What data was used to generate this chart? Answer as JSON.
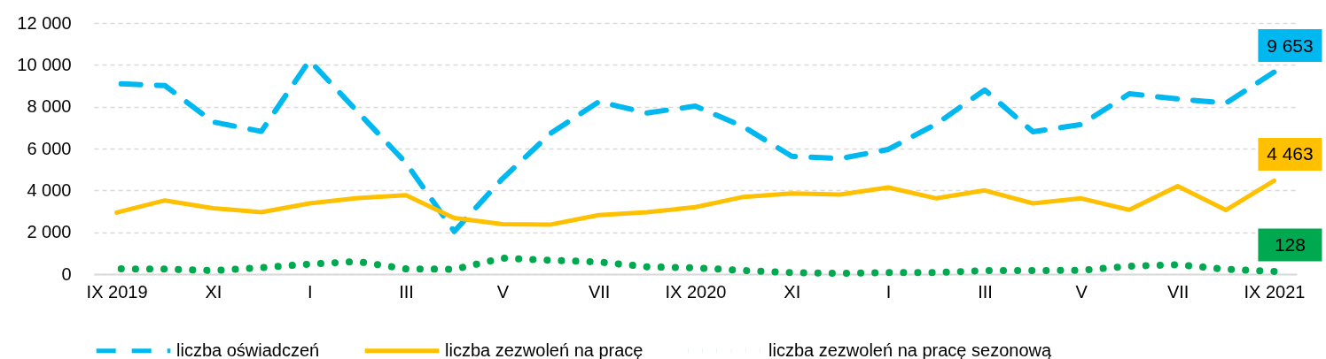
{
  "chart_data": {
    "type": "line",
    "categories": [
      "IX 2019",
      null,
      "XI",
      null,
      "I",
      null,
      "III",
      null,
      "V",
      null,
      "VII",
      null,
      "IX 2020",
      null,
      "XI",
      null,
      "I",
      null,
      "III",
      null,
      "V",
      null,
      "VII",
      null,
      "IX 2021"
    ],
    "ylim": [
      0,
      12000
    ],
    "yticks": [
      {
        "value": 0,
        "label": "0"
      },
      {
        "value": 2000,
        "label": "2 000"
      },
      {
        "value": 4000,
        "label": "4 000"
      },
      {
        "value": 6000,
        "label": "6 000"
      },
      {
        "value": 8000,
        "label": "8 000"
      },
      {
        "value": 10000,
        "label": "10 000"
      },
      {
        "value": 12000,
        "label": "12 000"
      }
    ],
    "grid": "y",
    "legend": "bottom",
    "marker": "none",
    "series": [
      {
        "name": "liczba oświadczeń",
        "color": "#00b8f0",
        "line_style": "dashed",
        "values": [
          9100,
          9010,
          7270,
          6820,
          10210,
          7750,
          5310,
          2040,
          4560,
          6730,
          8240,
          7700,
          8030,
          7040,
          5630,
          5520,
          5960,
          7180,
          8800,
          6800,
          7150,
          8620,
          8370,
          8170,
          9653
        ],
        "value_labels": [
          null,
          null,
          null,
          null,
          null,
          null,
          null,
          null,
          null,
          null,
          null,
          null,
          null,
          null,
          null,
          null,
          null,
          null,
          null,
          null,
          null,
          null,
          null,
          null,
          "9 653"
        ]
      },
      {
        "name": "liczba zezwoleń na pracę",
        "color": "#ffc000",
        "line_style": "solid",
        "values": [
          2940,
          3520,
          3150,
          2960,
          3380,
          3630,
          3770,
          2680,
          2390,
          2370,
          2820,
          2960,
          3200,
          3690,
          3860,
          3800,
          4140,
          3620,
          4000,
          3380,
          3620,
          3070,
          4200,
          3060,
          4463
        ],
        "value_labels": [
          null,
          null,
          null,
          null,
          null,
          null,
          null,
          null,
          null,
          null,
          null,
          null,
          null,
          null,
          null,
          null,
          null,
          null,
          null,
          null,
          null,
          null,
          null,
          null,
          "4 463"
        ]
      },
      {
        "name": "liczba zezwoleń na pracę sezonową",
        "color": "#00a84f",
        "line_style": "dotted",
        "values": [
          250,
          240,
          170,
          310,
          480,
          600,
          250,
          230,
          760,
          660,
          580,
          350,
          300,
          170,
          70,
          40,
          70,
          70,
          170,
          170,
          180,
          380,
          450,
          230,
          128
        ],
        "value_labels": [
          null,
          null,
          null,
          null,
          null,
          null,
          null,
          null,
          null,
          null,
          null,
          null,
          null,
          null,
          null,
          null,
          null,
          null,
          null,
          null,
          null,
          null,
          null,
          null,
          "128"
        ]
      }
    ]
  }
}
